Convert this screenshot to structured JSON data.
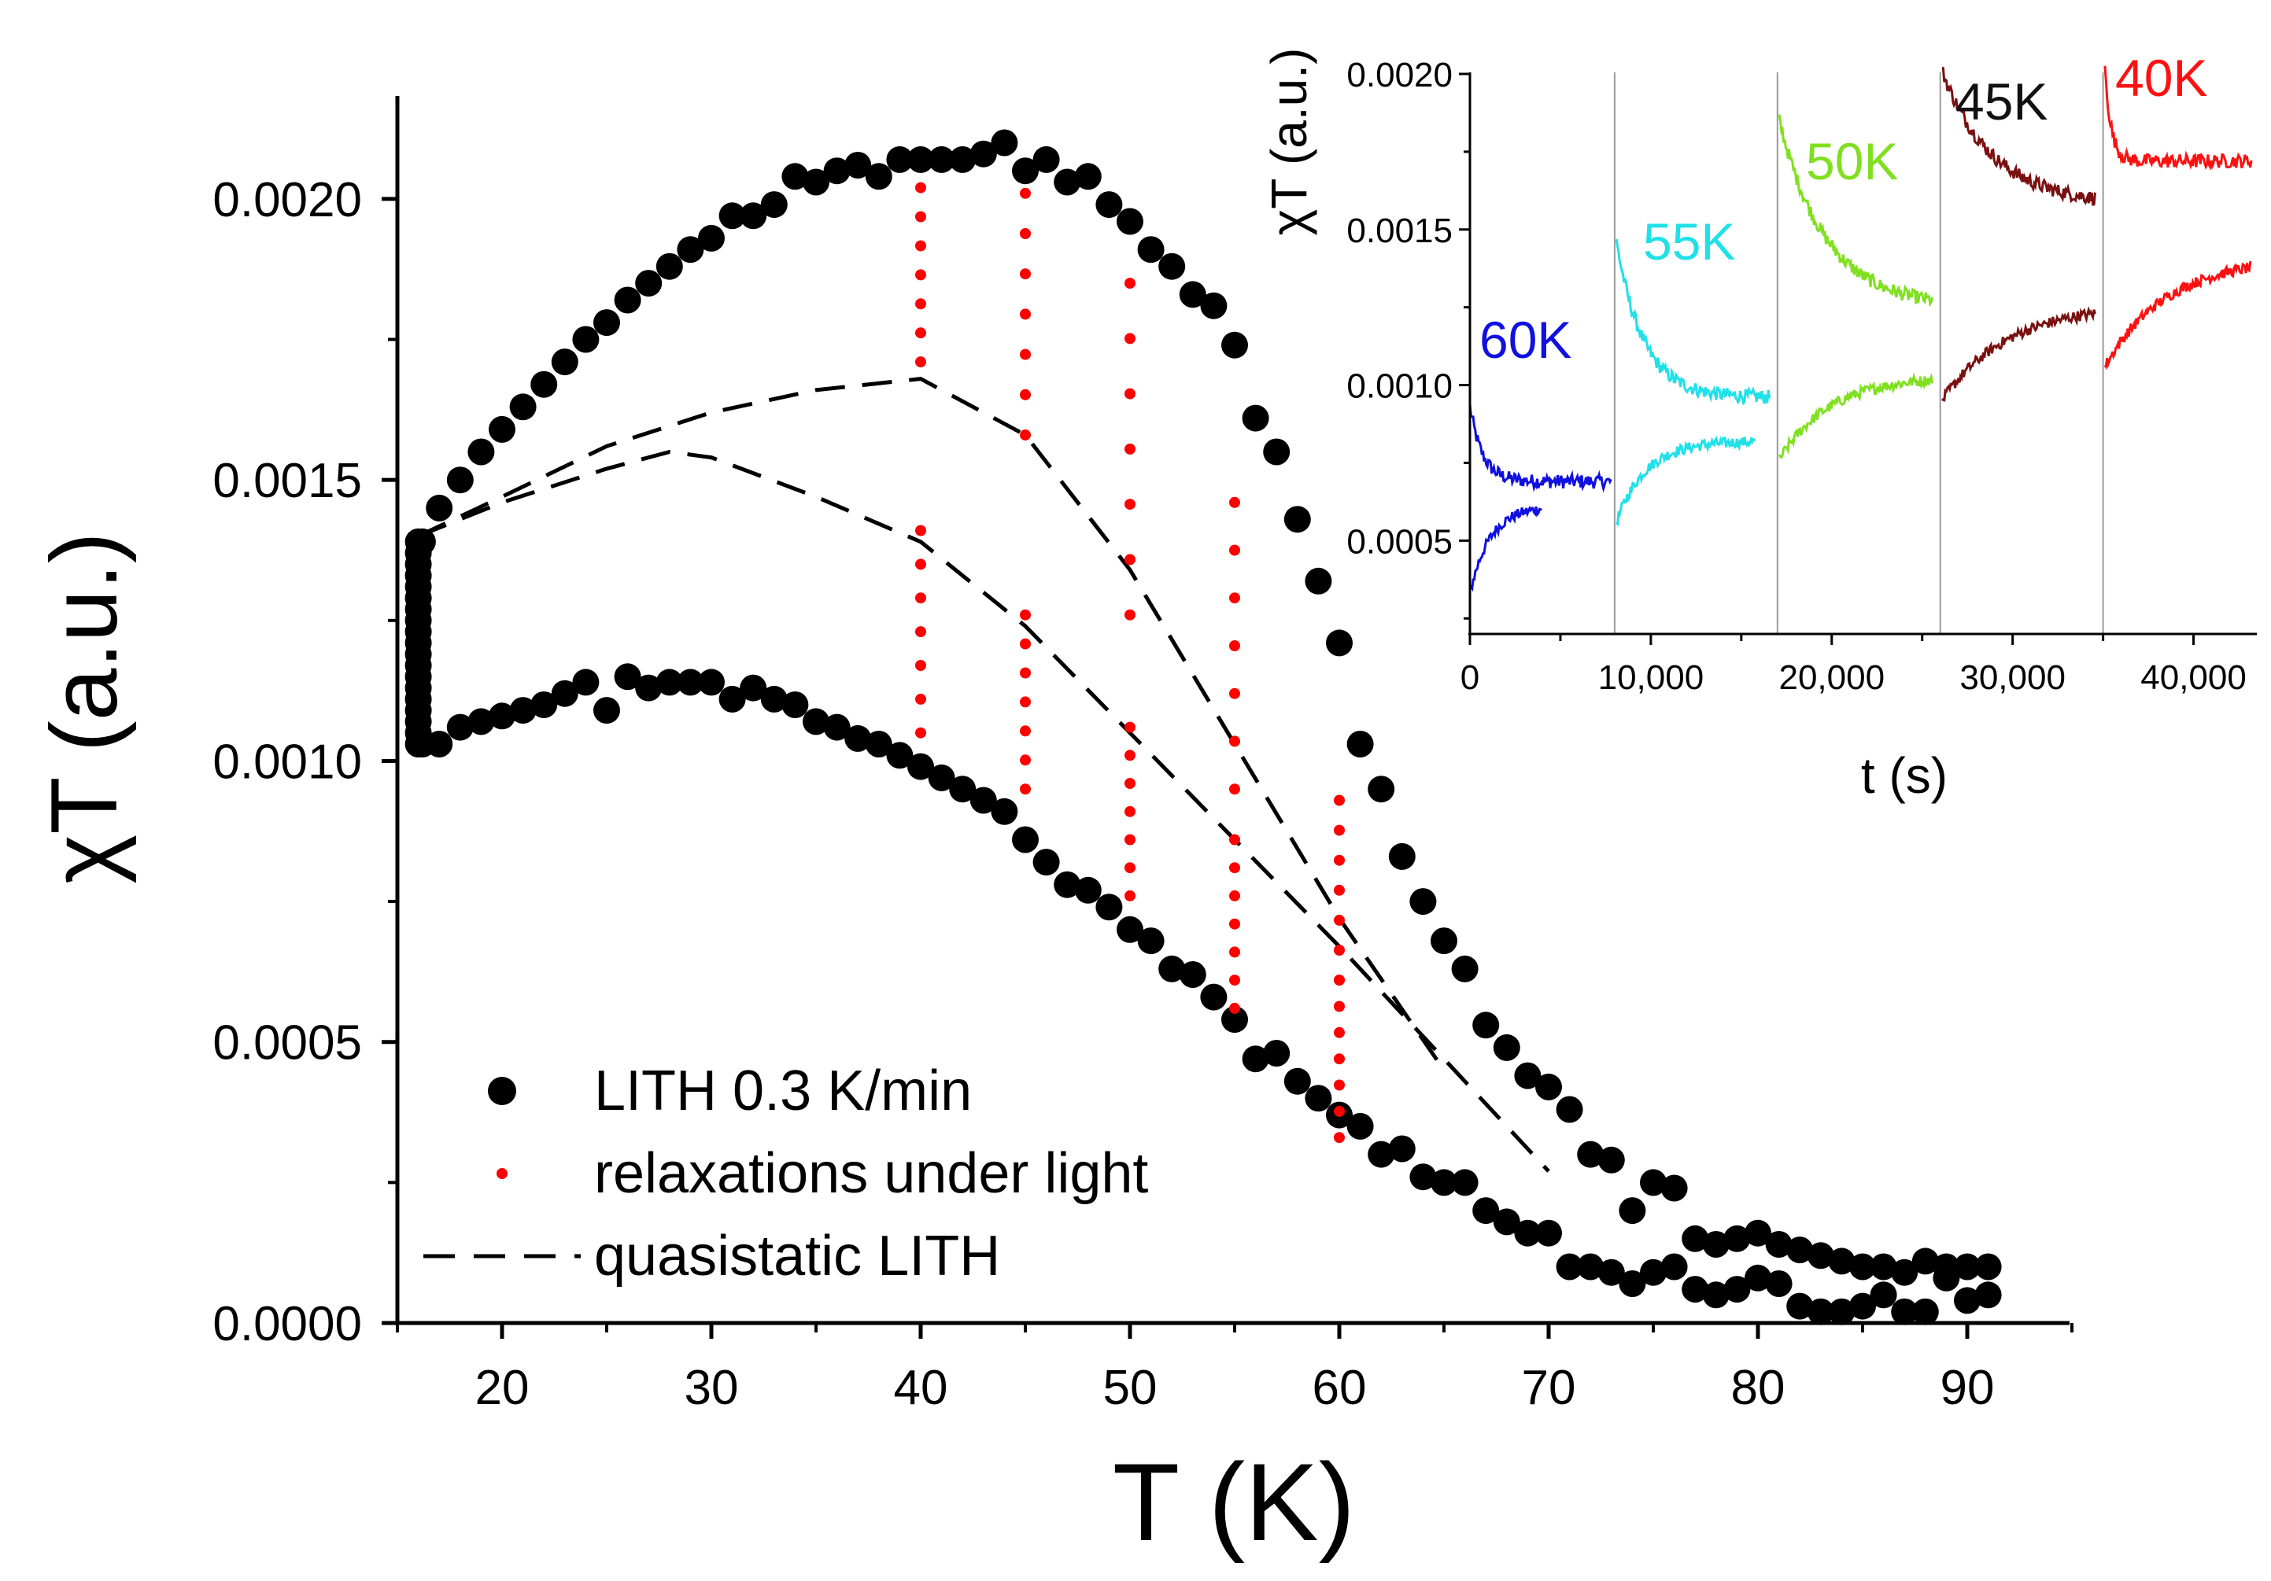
{
  "chart_data": [
    {
      "type": "scatter",
      "title": "",
      "xlabel": "T (K)",
      "ylabel": "χT (a.u.)",
      "xlim": [
        15,
        95
      ],
      "ylim": [
        0.0,
        0.0022
      ],
      "xticks": [
        20,
        30,
        40,
        50,
        60,
        70,
        80,
        90
      ],
      "xtick_labels": [
        "20",
        "30",
        "40",
        "50",
        "60",
        "70",
        "80",
        "90"
      ],
      "yticks": [
        0.0,
        0.0005,
        0.001,
        0.0015,
        0.002
      ],
      "ytick_labels": [
        "0.0000",
        "0.0005",
        "0.0010",
        "0.0015",
        "0.0020"
      ],
      "legend": {
        "position": "bottom-left",
        "entries": [
          "LITH 0.3 K/min",
          "relaxations under light",
          "quasistatic LITH"
        ]
      },
      "series": [
        {
          "name": "LITH 0.3 K/min",
          "kind": "markers",
          "color": "#000000",
          "upper_branch": {
            "x": [
              16.2,
              17,
              18,
              19,
              20,
              21,
              22,
              23,
              24,
              25,
              26,
              27,
              28,
              29,
              30,
              31,
              32,
              33,
              34,
              35,
              36,
              37,
              38,
              39,
              40,
              41,
              42,
              43,
              44,
              45,
              46,
              47,
              48,
              49,
              50,
              51,
              52,
              53,
              54,
              55,
              56,
              57,
              58,
              59,
              60,
              61,
              62,
              63,
              64,
              65,
              66,
              67,
              68,
              69,
              70,
              71,
              72,
              73,
              74,
              75,
              76,
              77,
              78,
              79,
              80,
              81,
              82,
              83,
              84,
              85,
              86,
              87,
              88,
              89,
              90,
              91
            ],
            "y": [
              0.00139,
              0.00145,
              0.0015,
              0.00155,
              0.00159,
              0.00163,
              0.00167,
              0.00171,
              0.00175,
              0.00178,
              0.00182,
              0.00185,
              0.00188,
              0.00191,
              0.00193,
              0.00197,
              0.00197,
              0.00199,
              0.00204,
              0.00203,
              0.00205,
              0.00206,
              0.00204,
              0.00207,
              0.00207,
              0.00207,
              0.00207,
              0.00208,
              0.0021,
              0.00205,
              0.00207,
              0.00203,
              0.00204,
              0.00199,
              0.00196,
              0.00191,
              0.00188,
              0.00183,
              0.00181,
              0.00174,
              0.00161,
              0.00155,
              0.00143,
              0.00132,
              0.00121,
              0.00103,
              0.00095,
              0.00083,
              0.00075,
              0.00068,
              0.00063,
              0.00053,
              0.00049,
              0.00044,
              0.00042,
              0.00038,
              0.0003,
              0.00029,
              0.0002,
              0.00025,
              0.00024,
              0.00015,
              0.00014,
              0.00015,
              0.00016,
              0.00014,
              0.00013,
              0.00012,
              0.00011,
              0.0001,
              0.0001,
              9e-05,
              0.00011,
              0.0001,
              0.0001,
              0.0001
            ]
          },
          "lower_branch": {
            "x": [
              16.2,
              17,
              18,
              19,
              20,
              21,
              22,
              23,
              24,
              25,
              26,
              27,
              28,
              29,
              30,
              31,
              32,
              33,
              34,
              35,
              36,
              37,
              38,
              39,
              40,
              41,
              42,
              43,
              44,
              45,
              46,
              47,
              48,
              49,
              50,
              51,
              52,
              53,
              54,
              55,
              56,
              57,
              58,
              59,
              60,
              61,
              62,
              63,
              64,
              65,
              66,
              67,
              68,
              69,
              70,
              71,
              72,
              73,
              74,
              75,
              76,
              77,
              78,
              79,
              80,
              81,
              82,
              83,
              84,
              85,
              86,
              87,
              88,
              89,
              90,
              91
            ],
            "y": [
              0.00103,
              0.00103,
              0.00106,
              0.00107,
              0.00108,
              0.00109,
              0.0011,
              0.00112,
              0.00114,
              0.00109,
              0.00115,
              0.00113,
              0.00114,
              0.00114,
              0.00114,
              0.00111,
              0.00113,
              0.00111,
              0.0011,
              0.00107,
              0.00106,
              0.00104,
              0.00103,
              0.00101,
              0.00099,
              0.00097,
              0.00095,
              0.00093,
              0.00091,
              0.00086,
              0.00082,
              0.00078,
              0.00077,
              0.00074,
              0.0007,
              0.00068,
              0.00063,
              0.00062,
              0.00058,
              0.00054,
              0.00047,
              0.00048,
              0.00043,
              0.0004,
              0.00037,
              0.00035,
              0.0003,
              0.00031,
              0.00026,
              0.00025,
              0.00025,
              0.0002,
              0.00018,
              0.00016,
              0.00016,
              0.0001,
              0.0001,
              9e-05,
              7e-05,
              9e-05,
              0.0001,
              6e-05,
              5e-05,
              6e-05,
              8e-05,
              7e-05,
              3e-05,
              2e-05,
              2e-05,
              3e-05,
              5e-05,
              2e-05,
              2e-05,
              8e-05,
              4e-05,
              5e-05
            ]
          },
          "low_T_column": {
            "x": 16.0,
            "y_range": [
              0.00103,
              0.00139
            ]
          }
        },
        {
          "name": "relaxations under light",
          "kind": "dots",
          "color": "#ff0000",
          "columns": [
            {
              "x": 40,
              "segments": [
                [
                  0.00171,
                  0.00202
                ],
                [
                  0.00105,
                  0.00141
                ]
              ]
            },
            {
              "x": 45,
              "segments": [
                [
                  0.00158,
                  0.00201
                ],
                [
                  0.00095,
                  0.00126
                ]
              ]
            },
            {
              "x": 50,
              "segments": [
                [
                  0.00126,
                  0.00185
                ],
                [
                  0.00076,
                  0.00106
                ]
              ]
            },
            {
              "x": 55,
              "segments": [
                [
                  0.00095,
                  0.00146
                ],
                [
                  0.00056,
                  0.00086
                ]
              ]
            },
            {
              "x": 60,
              "segments": [
                [
                  0.00061,
                  0.00093
                ],
                [
                  0.00033,
                  0.00061
                ]
              ]
            }
          ]
        },
        {
          "name": "quasistatic LITH",
          "kind": "dashed",
          "color": "#000000",
          "upper_curve": {
            "x": [
              16,
              20,
              25,
              30,
              35,
              40,
              45,
              50,
              55,
              60,
              65
            ],
            "y": [
              0.0014,
              0.00147,
              0.00156,
              0.00162,
              0.00166,
              0.00168,
              0.00158,
              0.00134,
              0.00103,
              0.00072,
              0.00045
            ]
          },
          "lower_curve": {
            "x": [
              16,
              20,
              25,
              28,
              30,
              35,
              40,
              45,
              50,
              55,
              60,
              65,
              70
            ],
            "y": [
              0.0014,
              0.00146,
              0.00152,
              0.00155,
              0.00154,
              0.00147,
              0.00139,
              0.00124,
              0.00105,
              0.00086,
              0.00067,
              0.00047,
              0.00027
            ]
          }
        }
      ]
    },
    {
      "type": "line",
      "title": "",
      "xlabel": "t (s)",
      "ylabel": "χT (a.u.)",
      "xlim": [
        0,
        43500
      ],
      "ylim": [
        0.0002,
        0.002
      ],
      "xticks": [
        0,
        10000,
        20000,
        30000,
        40000
      ],
      "xtick_labels": [
        "0",
        "10,000",
        "20,000",
        "30,000",
        "40,000"
      ],
      "yticks": [
        0.0005,
        0.001,
        0.0015,
        0.002
      ],
      "ytick_labels": [
        "0.0005",
        "0.0010",
        "0.0015",
        "0.0020"
      ],
      "separators": [
        8000,
        17000,
        26000,
        35000
      ],
      "series": [
        {
          "name": "60K",
          "color": "#1010e0",
          "t_start": 0,
          "t_end": 7800,
          "decay": {
            "y0": 0.00093,
            "y_inf": 0.00069,
            "tau": 700
          },
          "rise": {
            "t_end": 4000,
            "y0": 0.00033,
            "y_inf": 0.00061,
            "tau": 1100
          }
        },
        {
          "name": "55K",
          "color": "#20e0e8",
          "t_start": 8100,
          "t_end": 16600,
          "decay": {
            "y0": 0.00146,
            "y_inf": 0.00096,
            "tau": 1500
          },
          "rise": {
            "t_end": 15800,
            "y0": 0.00056,
            "y_inf": 0.00082,
            "tau": 1600
          }
        },
        {
          "name": "50K",
          "color": "#80e020",
          "t_start": 17100,
          "t_end": 25600,
          "decay": {
            "y0": 0.00185,
            "y_inf": 0.00125,
            "tau": 2600
          },
          "rise": {
            "t_end": 25600,
            "y0": 0.00076,
            "y_inf": 0.00103,
            "tau": 2800
          }
        },
        {
          "name": "45K",
          "color": "#7a1010",
          "t_start": 26100,
          "t_end": 34600,
          "decay": {
            "y0": 0.00201,
            "y_inf": 0.00158,
            "tau": 2800
          },
          "rise": {
            "t_end": 34600,
            "y0": 0.00095,
            "y_inf": 0.00126,
            "tau": 3600
          }
        },
        {
          "name": "40K",
          "color": "#ff1010",
          "t_start": 35100,
          "t_end": 43200,
          "decay": {
            "y0": 0.00202,
            "y_inf": 0.00172,
            "tau": 350
          },
          "rise": {
            "t_end": 43200,
            "y0": 0.00106,
            "y_inf": 0.00141,
            "tau": 3400
          }
        }
      ],
      "series_labels": [
        "60K",
        "55K",
        "50K",
        "45K",
        "40K"
      ]
    }
  ]
}
